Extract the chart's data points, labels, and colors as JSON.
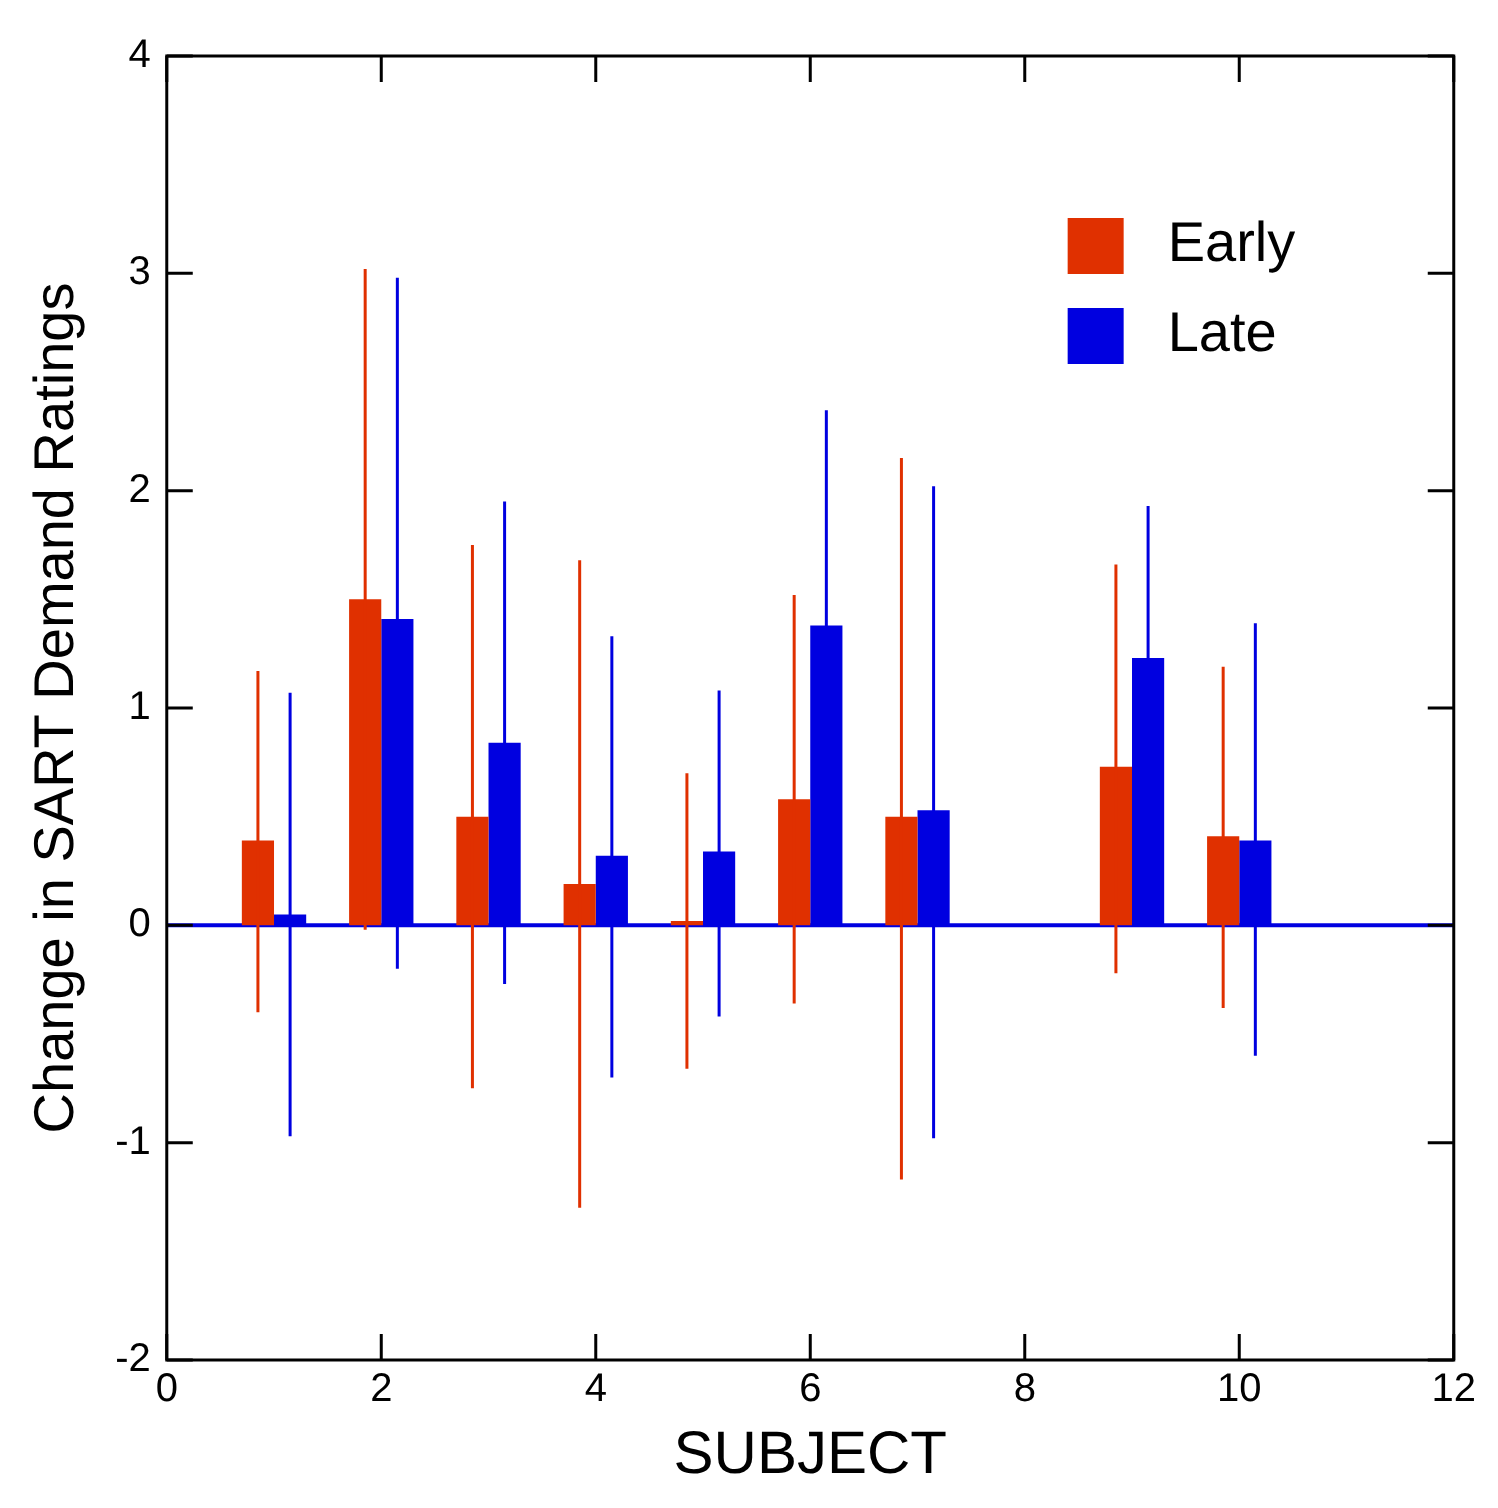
{
  "chart_data": {
    "type": "bar",
    "xlabel": "SUBJECT",
    "ylabel": "Change in SART Demand Ratings",
    "x": [
      1,
      2,
      3,
      4,
      5,
      6,
      7,
      8,
      9,
      10
    ],
    "series": [
      {
        "name": "Early",
        "color": "#e03000",
        "values": [
          0.39,
          1.5,
          0.5,
          0.19,
          0.02,
          0.58,
          0.5,
          0,
          0.73,
          0.41
        ],
        "errors": [
          [
            -0.4,
            1.17
          ],
          [
            -0.02,
            3.02
          ],
          [
            -0.75,
            1.75
          ],
          [
            -1.3,
            1.68
          ],
          [
            -0.66,
            0.7
          ],
          [
            -0.36,
            1.52
          ],
          [
            -1.17,
            2.15
          ],
          null,
          [
            -0.22,
            1.66
          ],
          [
            -0.38,
            1.19
          ]
        ]
      },
      {
        "name": "Late",
        "color": "#0000e0",
        "values": [
          0.05,
          1.41,
          0.84,
          0.32,
          0.34,
          1.38,
          0.53,
          0,
          1.23,
          0.39
        ],
        "errors": [
          [
            -0.97,
            1.07
          ],
          [
            -0.2,
            2.98
          ],
          [
            -0.27,
            1.95
          ],
          [
            -0.7,
            1.33
          ],
          [
            -0.42,
            1.08
          ],
          [
            0,
            2.37
          ],
          [
            -0.98,
            2.02
          ],
          null,
          [
            0,
            1.93
          ],
          [
            -0.6,
            1.39
          ]
        ]
      }
    ],
    "xlim": [
      0,
      12
    ],
    "xticks": [
      0,
      2,
      4,
      6,
      8,
      10,
      12
    ],
    "ylim": [
      -2,
      4
    ],
    "yticks": [
      -2,
      -1,
      0,
      1,
      2,
      3,
      4
    ],
    "ref_lines": [
      {
        "axis": "y",
        "value": 0,
        "color": "#0000e0"
      }
    ],
    "legend": "top right",
    "grid": false
  }
}
